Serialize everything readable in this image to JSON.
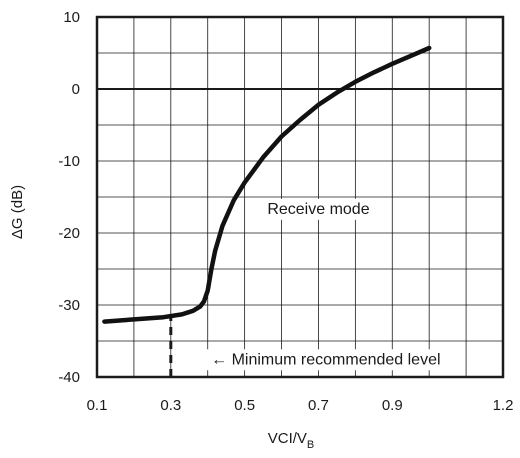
{
  "chart_data": {
    "type": "line",
    "xlabel": "VCI/V",
    "xlabel_subscript": "B",
    "ylabel": "ΔG (dB)",
    "xlim": [
      0.1,
      1.2
    ],
    "ylim": [
      -40,
      10
    ],
    "x_ticks": [
      0.1,
      0.3,
      0.5,
      0.7,
      0.9,
      1.2
    ],
    "x_tick_labels": [
      "0.1",
      "0.3",
      "0.5",
      "0.7",
      "0.9",
      "1.2"
    ],
    "y_ticks": [
      10,
      0,
      -10,
      -20,
      -30,
      -40
    ],
    "y_tick_labels": [
      "10",
      "0",
      "-10",
      "-20",
      "-30",
      "-40"
    ],
    "grid": true,
    "zero_line": 0,
    "series": [
      {
        "x": [
          0.12,
          0.2,
          0.28,
          0.33,
          0.36,
          0.38,
          0.39,
          0.4,
          0.41,
          0.42,
          0.44,
          0.47,
          0.5,
          0.55,
          0.6,
          0.65,
          0.7,
          0.75,
          0.8,
          0.85,
          0.9,
          0.95,
          1.0
        ],
        "y": [
          -32.3,
          -32.0,
          -31.7,
          -31.3,
          -30.8,
          -30.2,
          -29.5,
          -28.0,
          -25.0,
          -22.5,
          -19.0,
          -15.5,
          -13.0,
          -9.5,
          -6.6,
          -4.3,
          -2.2,
          -0.5,
          1.0,
          2.3,
          3.5,
          4.6,
          5.7
        ]
      }
    ],
    "annotations": [
      {
        "text": "Receive mode",
        "x": 0.7,
        "y": -16.5
      },
      {
        "text": "← Minimum recommended level",
        "x": 0.72,
        "y": -37.4
      }
    ],
    "reference_lines": [
      {
        "type": "vertical",
        "style": "dashed",
        "x": 0.3,
        "y_from": -40,
        "y_to": -31.6
      }
    ]
  }
}
